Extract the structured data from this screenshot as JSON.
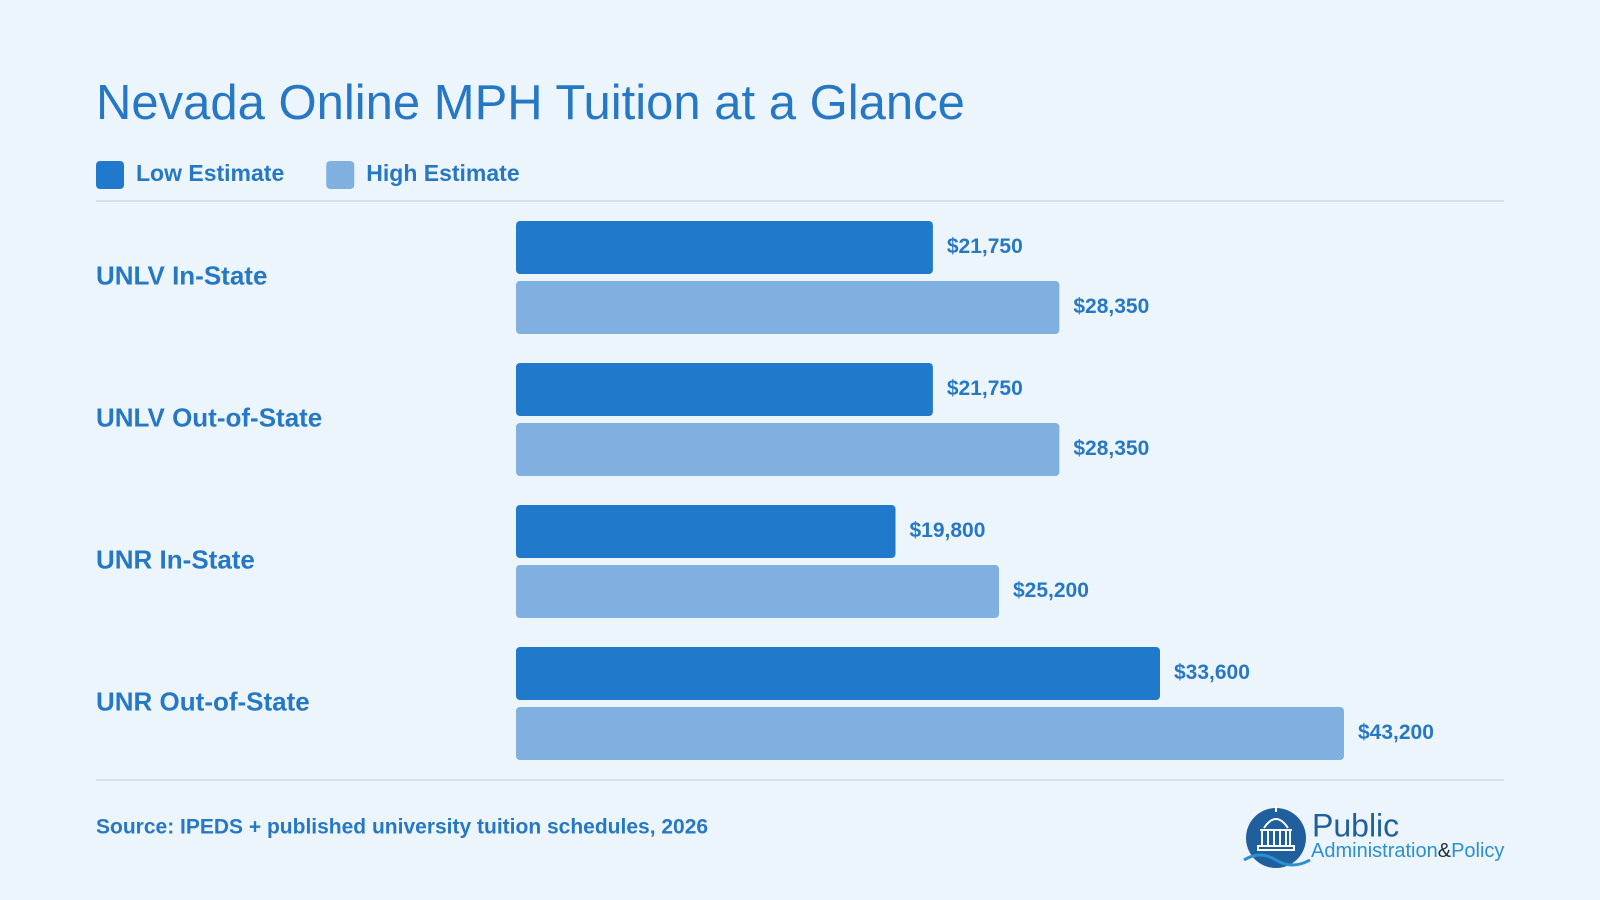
{
  "chart_data": {
    "type": "bar",
    "orientation": "horizontal",
    "title": "Nevada Online MPH Tuition at a Glance",
    "categories": [
      "UNLV In-State",
      "UNLV Out-of-State",
      "UNR In-State",
      "UNR Out-of-State"
    ],
    "series": [
      {
        "name": "Low Estimate",
        "color": "#2179cc",
        "values": [
          21750,
          21750,
          19800,
          33600
        ],
        "value_labels": [
          "$21,750",
          "$21,750",
          "$19,800",
          "$33,600"
        ]
      },
      {
        "name": "High Estimate",
        "color": "#7fb0e0",
        "values": [
          28350,
          28350,
          25200,
          43200
        ],
        "value_labels": [
          "$28,350",
          "$28,350",
          "$25,200",
          "$43,200"
        ]
      }
    ],
    "source": "Source: IPEDS + published university tuition schedules, 2026"
  },
  "logo": {
    "name": "Public",
    "line2": "Administration",
    "amp": "&",
    "line3": "Policy"
  }
}
